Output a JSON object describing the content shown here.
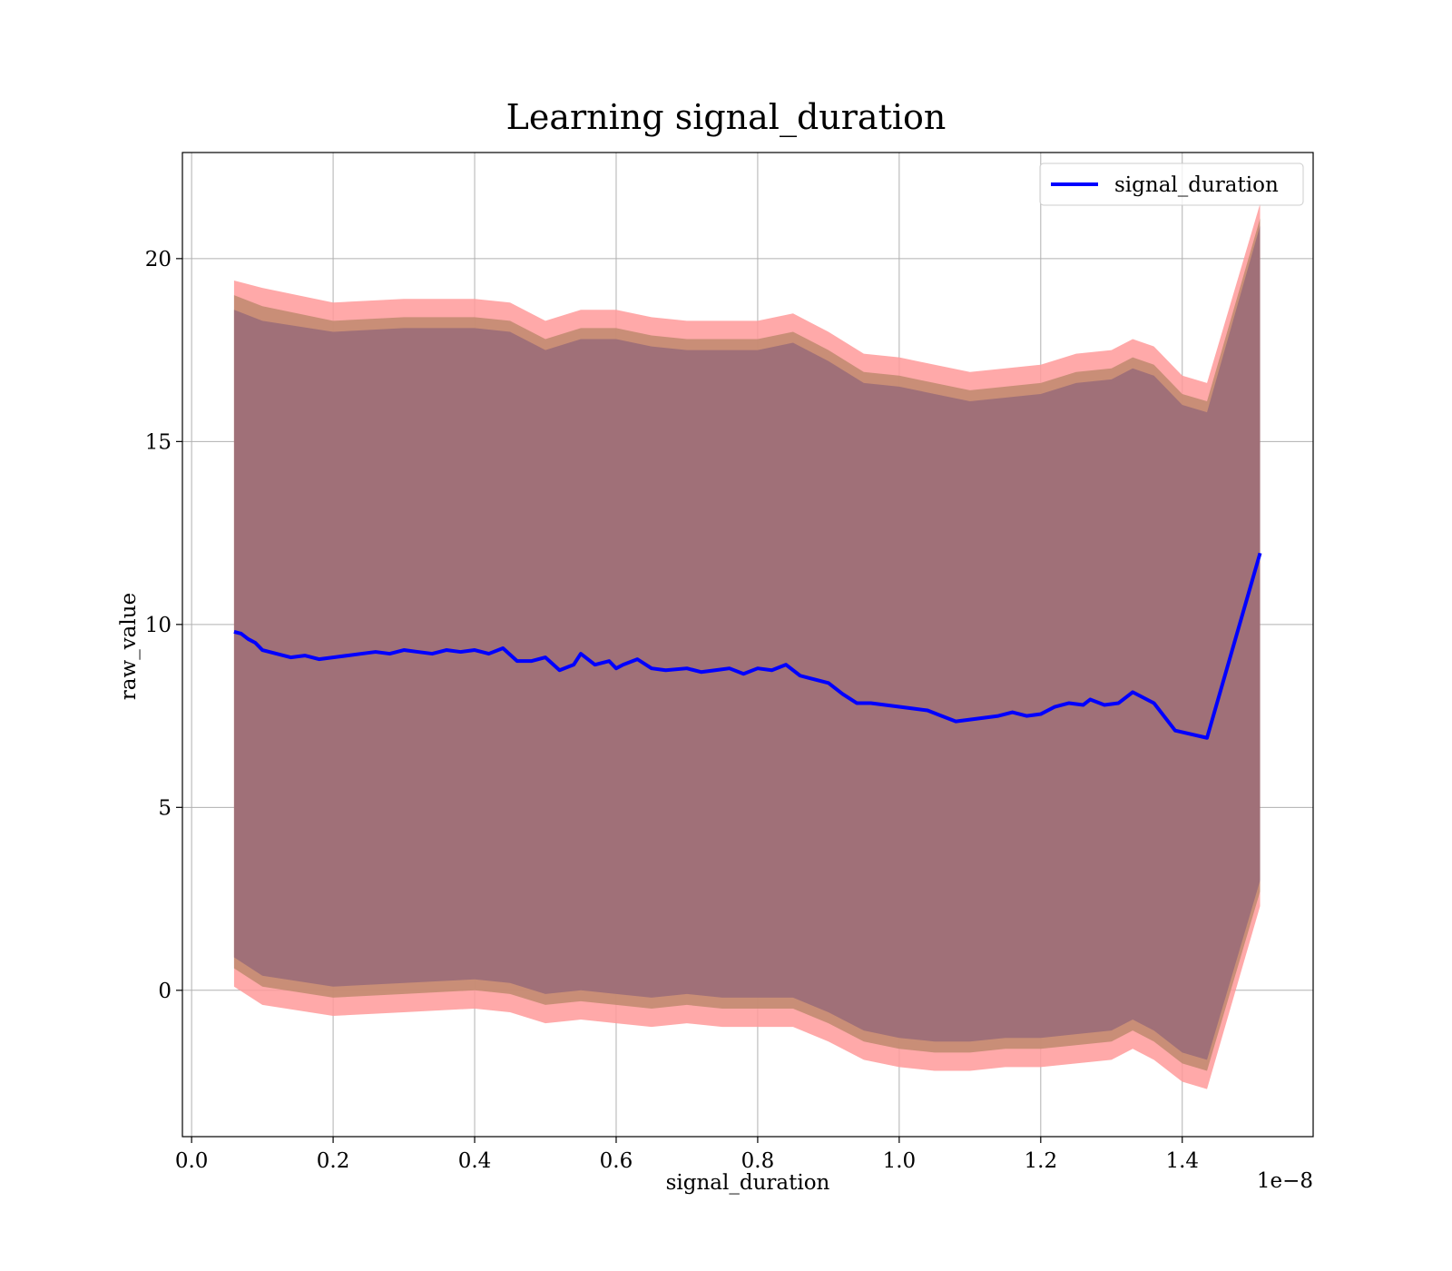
{
  "chart_data": {
    "type": "line",
    "title": "Learning signal_duration",
    "xlabel": "signal_duration",
    "ylabel": "raw_value",
    "x_offset_label": "1e−8",
    "xlim": [
      -0.013,
      1.585
    ],
    "ylim": [
      -4.0,
      22.9
    ],
    "x_ticks": [
      0.0,
      0.2,
      0.4,
      0.6,
      0.8,
      1.0,
      1.2,
      1.4
    ],
    "x_tick_labels": [
      "0.0",
      "0.2",
      "0.4",
      "0.6",
      "0.8",
      "1.0",
      "1.2",
      "1.4"
    ],
    "y_ticks": [
      0,
      5,
      10,
      15,
      20
    ],
    "y_tick_labels": [
      "0",
      "5",
      "10",
      "15",
      "20"
    ],
    "grid": true,
    "legend": {
      "position": "top-right",
      "entries": [
        "signal_duration"
      ]
    },
    "colors": {
      "line": "#0000ff",
      "band_outer": "#ff9a9a",
      "band_middle": "#c08a6e",
      "band_inner": "#a07078"
    },
    "series": [
      {
        "name": "signal_duration",
        "x": [
          0.06,
          0.07,
          0.08,
          0.09,
          0.1,
          0.12,
          0.14,
          0.16,
          0.18,
          0.2,
          0.22,
          0.24,
          0.26,
          0.28,
          0.3,
          0.32,
          0.34,
          0.36,
          0.38,
          0.4,
          0.42,
          0.44,
          0.46,
          0.48,
          0.5,
          0.52,
          0.54,
          0.55,
          0.57,
          0.59,
          0.6,
          0.61,
          0.63,
          0.65,
          0.67,
          0.7,
          0.72,
          0.74,
          0.76,
          0.78,
          0.8,
          0.82,
          0.84,
          0.86,
          0.88,
          0.9,
          0.92,
          0.94,
          0.96,
          0.98,
          1.0,
          1.02,
          1.04,
          1.06,
          1.08,
          1.1,
          1.12,
          1.14,
          1.16,
          1.18,
          1.2,
          1.22,
          1.24,
          1.26,
          1.27,
          1.29,
          1.31,
          1.33,
          1.36,
          1.39,
          1.435,
          1.51
        ],
        "y": [
          9.8,
          9.75,
          9.6,
          9.5,
          9.3,
          9.2,
          9.1,
          9.15,
          9.05,
          9.1,
          9.15,
          9.2,
          9.25,
          9.2,
          9.3,
          9.25,
          9.2,
          9.3,
          9.25,
          9.3,
          9.2,
          9.35,
          9.0,
          9.0,
          9.1,
          8.75,
          8.9,
          9.2,
          8.9,
          9.0,
          8.8,
          8.9,
          9.05,
          8.8,
          8.75,
          8.8,
          8.7,
          8.75,
          8.8,
          8.65,
          8.8,
          8.75,
          8.9,
          8.6,
          8.5,
          8.4,
          8.1,
          7.85,
          7.85,
          7.8,
          7.75,
          7.7,
          7.65,
          7.5,
          7.35,
          7.4,
          7.45,
          7.5,
          7.6,
          7.5,
          7.55,
          7.75,
          7.85,
          7.8,
          7.95,
          7.8,
          7.85,
          8.15,
          7.85,
          7.1,
          6.9,
          11.95
        ]
      }
    ],
    "bands": [
      {
        "level": "outer",
        "x": [
          0.06,
          0.1,
          0.2,
          0.3,
          0.4,
          0.45,
          0.5,
          0.55,
          0.6,
          0.65,
          0.7,
          0.75,
          0.8,
          0.85,
          0.9,
          0.95,
          1.0,
          1.05,
          1.1,
          1.15,
          1.2,
          1.25,
          1.3,
          1.33,
          1.36,
          1.4,
          1.435,
          1.51
        ],
        "upper": [
          19.4,
          19.2,
          18.8,
          18.9,
          18.9,
          18.8,
          18.3,
          18.6,
          18.6,
          18.4,
          18.3,
          18.3,
          18.3,
          18.5,
          18.0,
          17.4,
          17.3,
          17.1,
          16.9,
          17.0,
          17.1,
          17.4,
          17.5,
          17.8,
          17.6,
          16.8,
          16.6,
          21.5
        ],
        "lower": [
          0.1,
          -0.4,
          -0.7,
          -0.6,
          -0.5,
          -0.6,
          -0.9,
          -0.8,
          -0.9,
          -1.0,
          -0.9,
          -1.0,
          -1.0,
          -1.0,
          -1.4,
          -1.9,
          -2.1,
          -2.2,
          -2.2,
          -2.1,
          -2.1,
          -2.0,
          -1.9,
          -1.6,
          -1.9,
          -2.5,
          -2.7,
          2.3
        ]
      },
      {
        "level": "middle",
        "x": [
          0.06,
          0.1,
          0.2,
          0.3,
          0.4,
          0.45,
          0.5,
          0.55,
          0.6,
          0.65,
          0.7,
          0.75,
          0.8,
          0.85,
          0.9,
          0.95,
          1.0,
          1.05,
          1.1,
          1.15,
          1.2,
          1.25,
          1.3,
          1.33,
          1.36,
          1.4,
          1.435,
          1.51
        ],
        "upper": [
          19.0,
          18.7,
          18.3,
          18.4,
          18.4,
          18.3,
          17.8,
          18.1,
          18.1,
          17.9,
          17.8,
          17.8,
          17.8,
          18.0,
          17.5,
          16.9,
          16.8,
          16.6,
          16.4,
          16.5,
          16.6,
          16.9,
          17.0,
          17.3,
          17.1,
          16.3,
          16.1,
          21.1
        ],
        "lower": [
          0.6,
          0.1,
          -0.2,
          -0.1,
          0.0,
          -0.1,
          -0.4,
          -0.3,
          -0.4,
          -0.5,
          -0.4,
          -0.5,
          -0.5,
          -0.5,
          -0.9,
          -1.4,
          -1.6,
          -1.7,
          -1.7,
          -1.6,
          -1.6,
          -1.5,
          -1.4,
          -1.1,
          -1.4,
          -2.0,
          -2.2,
          2.7
        ]
      },
      {
        "level": "inner",
        "x": [
          0.06,
          0.1,
          0.2,
          0.3,
          0.4,
          0.45,
          0.5,
          0.55,
          0.6,
          0.65,
          0.7,
          0.75,
          0.8,
          0.85,
          0.9,
          0.95,
          1.0,
          1.05,
          1.1,
          1.15,
          1.2,
          1.25,
          1.3,
          1.33,
          1.36,
          1.4,
          1.435,
          1.51
        ],
        "upper": [
          18.6,
          18.3,
          18.0,
          18.1,
          18.1,
          18.0,
          17.5,
          17.8,
          17.8,
          17.6,
          17.5,
          17.5,
          17.5,
          17.7,
          17.2,
          16.6,
          16.5,
          16.3,
          16.1,
          16.2,
          16.3,
          16.6,
          16.7,
          17.0,
          16.8,
          16.0,
          15.8,
          20.9
        ],
        "lower": [
          0.9,
          0.4,
          0.1,
          0.2,
          0.3,
          0.2,
          -0.1,
          0.0,
          -0.1,
          -0.2,
          -0.1,
          -0.2,
          -0.2,
          -0.2,
          -0.6,
          -1.1,
          -1.3,
          -1.4,
          -1.4,
          -1.3,
          -1.3,
          -1.2,
          -1.1,
          -0.8,
          -1.1,
          -1.7,
          -1.9,
          3.0
        ]
      }
    ]
  }
}
